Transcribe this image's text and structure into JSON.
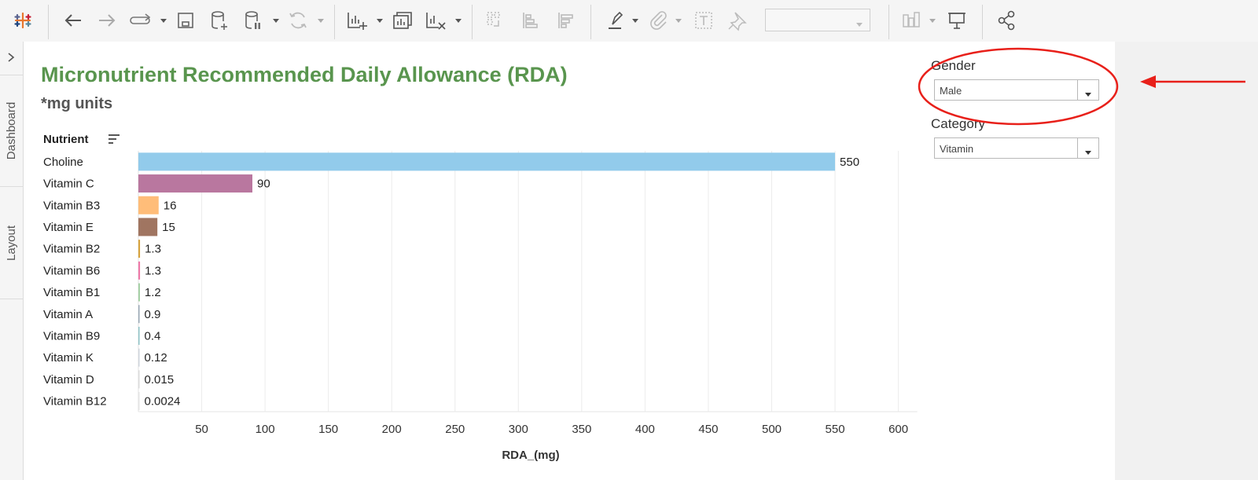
{
  "toolbar": {
    "icons": [
      "tableau-logo-icon",
      "undo-icon",
      "redo-icon",
      "present-flow-icon",
      "save-icon",
      "new-datasource-icon",
      "pause-updates-icon",
      "refresh-icon",
      "new-worksheet-icon",
      "duplicate-sheet-icon",
      "clear-sheet-icon",
      "swap-icon",
      "sort-ascending-icon",
      "sort-descending-icon",
      "highlight-icon",
      "attach-icon",
      "text-label-icon",
      "pin-icon",
      "show-me-icon",
      "presentation-icon",
      "share-icon"
    ],
    "fit_value": ""
  },
  "sidebar": {
    "tabs": [
      "Dashboard",
      "Layout"
    ]
  },
  "dashboard": {
    "title": "Micronutrient Recommended Daily Allowance (RDA)",
    "subtitle": "*mg units",
    "column_header": "Nutrient"
  },
  "filters": {
    "gender": {
      "label": "Gender",
      "value": "Male"
    },
    "category": {
      "label": "Category",
      "value": "Vitamin"
    }
  },
  "chart_data": {
    "type": "bar",
    "orientation": "horizontal",
    "categories": [
      "Choline",
      "Vitamin C",
      "Vitamin B3",
      "Vitamin E",
      "Vitamin B2",
      "Vitamin B6",
      "Vitamin B1",
      "Vitamin A",
      "Vitamin B9",
      "Vitamin K",
      "Vitamin D",
      "Vitamin B12"
    ],
    "values": [
      550,
      90,
      16,
      15,
      1.3,
      1.3,
      1.2,
      0.9,
      0.4,
      0.12,
      0.015,
      0.0024
    ],
    "value_labels": [
      "550",
      "90",
      "16",
      "15",
      "1.3",
      "1.3",
      "1.2",
      "0.9",
      "0.4",
      "0.12",
      "0.015",
      "0.0024"
    ],
    "colors": [
      "#92cbeb",
      "#b9779f",
      "#ffbd79",
      "#a07561",
      "#d7a23c",
      "#ee78a7",
      "#a3cfa3",
      "#9aa8b6",
      "#8fc3c7",
      "#cfd5dc",
      "#dbdbdb",
      "#e4e4e4"
    ],
    "xlabel": "RDA_(mg)",
    "xticks": [
      50,
      100,
      150,
      200,
      250,
      300,
      350,
      400,
      450,
      500,
      550,
      600
    ],
    "xlim": [
      0,
      610
    ],
    "grid": true
  }
}
